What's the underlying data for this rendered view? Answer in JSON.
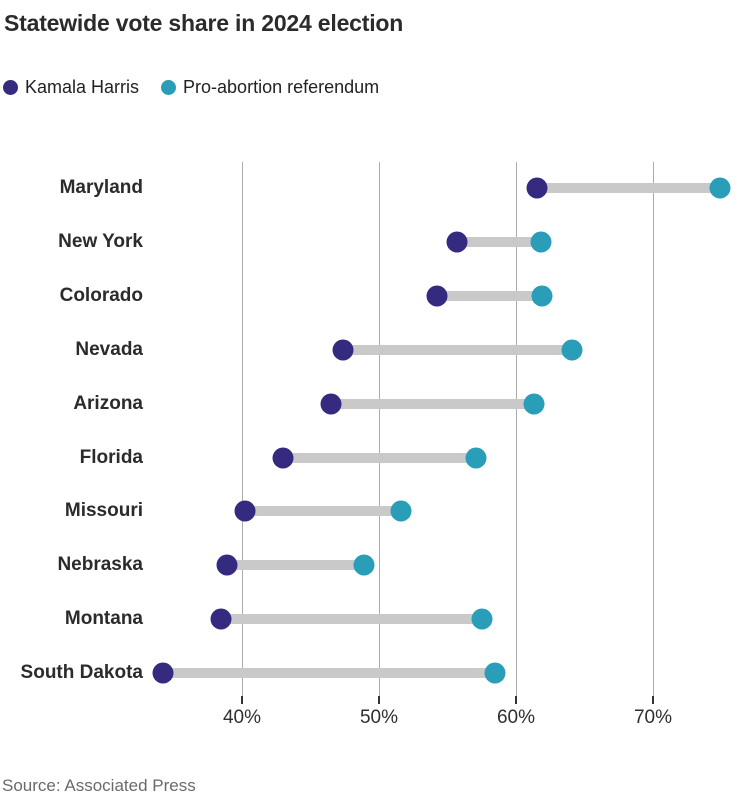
{
  "title": "Statewide vote share in 2024 election",
  "source": "Source: Associated Press",
  "colors": {
    "harris": "#342b80",
    "referendum": "#2a9db9",
    "connector": "#c9c9c9",
    "gridline": "#ababab",
    "tick": "#333333",
    "text_dark": "#2b2b2b",
    "source_text": "#6a6a6a"
  },
  "chart_data": {
    "type": "scatter",
    "variant": "dumbbell",
    "title": "Statewide vote share in 2024 election",
    "categories": [
      "Maryland",
      "New York",
      "Colorado",
      "Nevada",
      "Arizona",
      "Florida",
      "Missouri",
      "Nebraska",
      "Montana",
      "South Dakota"
    ],
    "series": [
      {
        "name": "Kamala Harris",
        "color": "#342b80",
        "values": [
          61.5,
          55.7,
          54.2,
          47.4,
          46.5,
          43.0,
          40.2,
          38.9,
          38.5,
          34.2
        ]
      },
      {
        "name": "Pro-abortion referendum",
        "color": "#2a9db9",
        "values": [
          74.9,
          61.8,
          61.9,
          64.1,
          61.3,
          57.1,
          51.6,
          48.9,
          57.5,
          58.5
        ]
      }
    ],
    "xlabel": "",
    "ylabel": "",
    "x_ticks": [
      {
        "value": 40,
        "label": "40%"
      },
      {
        "value": 50,
        "label": "50%"
      },
      {
        "value": 60,
        "label": "60%"
      },
      {
        "value": 70,
        "label": "70%"
      }
    ],
    "xlim": [
      33.3,
      76.6
    ],
    "grid": true,
    "legend_position": "top",
    "unit": "%"
  }
}
